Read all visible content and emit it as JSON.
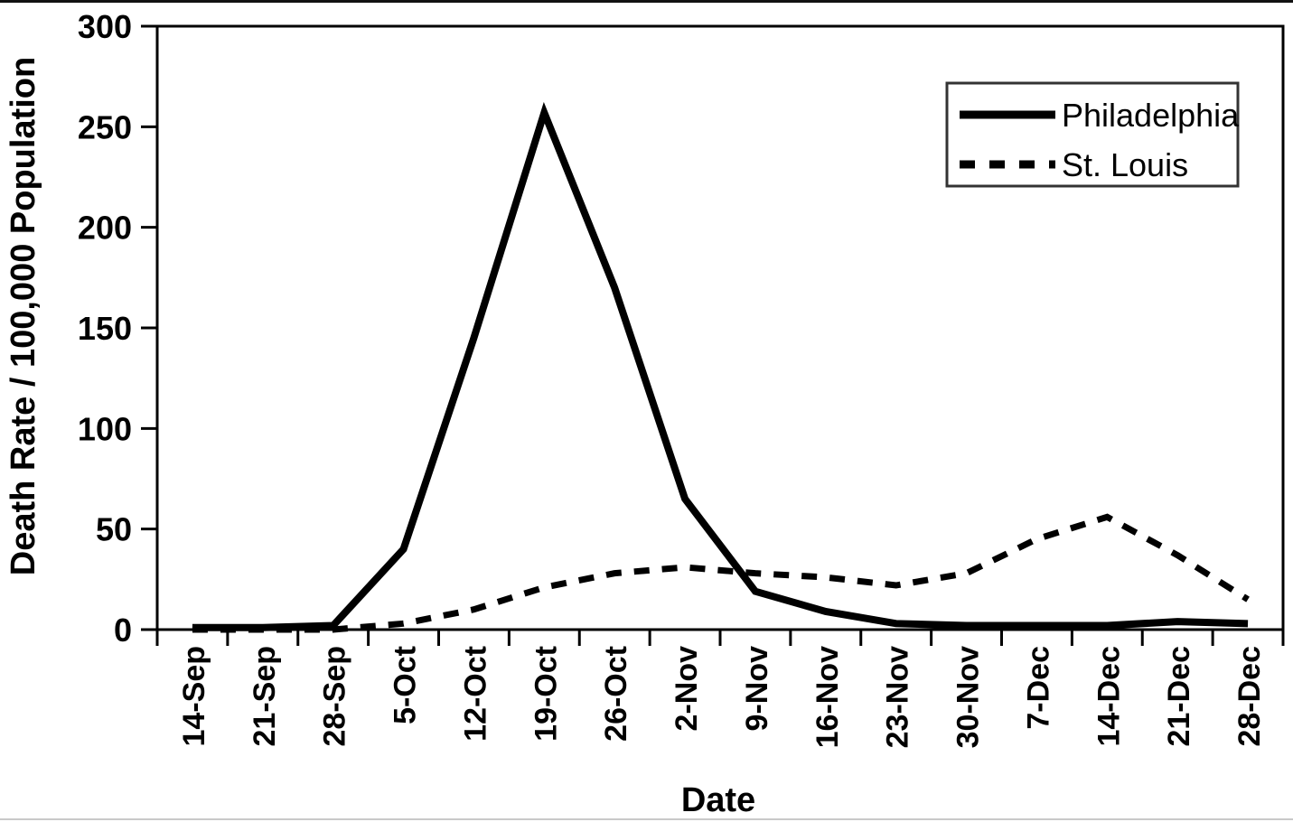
{
  "figure": {
    "background": "#ffffff",
    "ink_color": "#000000"
  },
  "chart_data": {
    "type": "line",
    "title": "",
    "xlabel": "Date",
    "ylabel": "Death Rate / 100,000 Population",
    "ylim": [
      0,
      300
    ],
    "yticks": [
      0,
      50,
      100,
      150,
      200,
      250,
      300
    ],
    "grid": false,
    "legend_position": "top-right-inside",
    "categories": [
      "14-Sep",
      "21-Sep",
      "28-Sep",
      "5-Oct",
      "12-Oct",
      "19-Oct",
      "26-Oct",
      "2-Nov",
      "9-Nov",
      "16-Nov",
      "23-Nov",
      "30-Nov",
      "7-Dec",
      "14-Dec",
      "21-Dec",
      "28-Dec"
    ],
    "series": [
      {
        "name": "Philadelphia",
        "line_style": "solid",
        "values": [
          1,
          1,
          2,
          40,
          145,
          257,
          170,
          65,
          19,
          9,
          3,
          2,
          2,
          2,
          4,
          3
        ]
      },
      {
        "name": "St. Louis",
        "line_style": "dashed",
        "values": [
          0,
          0,
          0,
          3,
          10,
          21,
          28,
          31,
          28,
          26,
          22,
          28,
          45,
          56,
          37,
          15
        ]
      }
    ]
  }
}
